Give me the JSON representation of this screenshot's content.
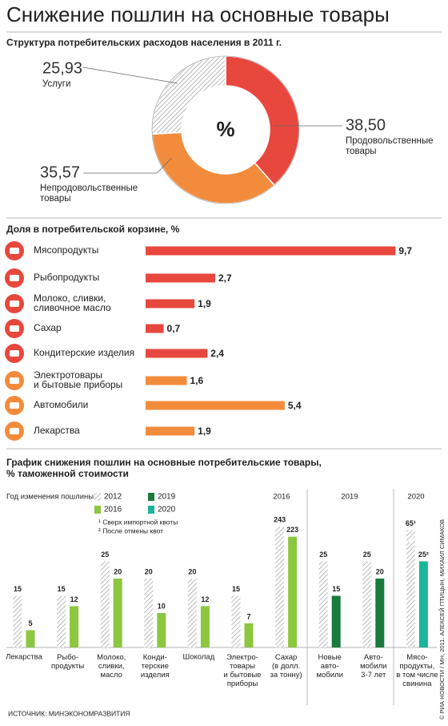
{
  "title": "Снижение пошлин на основные товары",
  "chart_data": [
    {
      "type": "pie",
      "title": "Структура потребительских расходов населения в 2011 г.",
      "center_label": "%",
      "categories": [
        "Продовольственные\nтовары",
        "Непродовольственные\nтовары",
        "Услуги"
      ],
      "values": [
        38.5,
        35.57,
        25.93
      ],
      "value_labels": [
        "38,50",
        "35,57",
        "25,93"
      ],
      "colors": [
        "#e8473e",
        "#f28c3c",
        "#8c8c8c"
      ],
      "hatched": [
        false,
        false,
        true
      ]
    },
    {
      "type": "hbar",
      "title": "Доля в потребительской корзине, %",
      "categories": [
        "Мясопродукты",
        "Рыбопродукты",
        "Молоко, сливки,\nсливочное масло",
        "Сахар",
        "Кондитерские изделия",
        "Электротовары\nи бытовые приборы",
        "Автомобили",
        "Лекарства"
      ],
      "values": [
        9.7,
        2.7,
        1.9,
        0.7,
        2.4,
        1.6,
        5.4,
        1.9
      ],
      "value_labels": [
        "9,7",
        "2,7",
        "1,9",
        "0,7",
        "2,4",
        "1,6",
        "5,4",
        "1,9"
      ],
      "colors": [
        "#e8473e",
        "#e8473e",
        "#e8473e",
        "#e8473e",
        "#e8473e",
        "#f28c3c",
        "#f28c3c",
        "#f28c3c"
      ]
    },
    {
      "type": "grouped_bar",
      "title": "График снижения пошлин на основные потребительские товары,\n% таможенной стоимости",
      "legend_title": "Год изменения пошлины",
      "notes": [
        "¹ Сверх импортной квоты",
        "² После отмены квот"
      ],
      "section_labels": [
        "2016",
        "2019",
        "2020"
      ],
      "categories": [
        "Лекарства",
        "Рыбо-\nпродукты",
        "Молоко,\nсливки,\nмасло",
        "Конди-\nтерские\nизделия",
        "Шоколад",
        "Электро-\nтовары\nи бытовые\nприборы",
        "Сахар\n(в долл.\nза тонну)",
        "Новые\nавто-\nмобили",
        "Авто-\nмобили\n3-7 лет",
        "Мясо-\nпродукты,\nв том числе\nсвинина"
      ],
      "series": [
        {
          "name": "2012",
          "color": "#8c8c8c",
          "hatched": true,
          "values": [
            15,
            15,
            25,
            20,
            20,
            15,
            243,
            25,
            25,
            65
          ],
          "value_labels": [
            "15",
            "15",
            "25",
            "20",
            "20",
            "15",
            "243",
            "25",
            "25",
            "65¹"
          ]
        },
        {
          "name": "2016",
          "color": "#8dc63f",
          "values": [
            5,
            12,
            20,
            10,
            12,
            7,
            223,
            null,
            null,
            null
          ]
        },
        {
          "name": "2019",
          "color": "#1b7a3e",
          "values": [
            null,
            null,
            null,
            null,
            null,
            null,
            null,
            15,
            20,
            null
          ]
        },
        {
          "name": "2020",
          "color": "#1ab59a",
          "values": [
            null,
            null,
            null,
            null,
            null,
            null,
            null,
            null,
            null,
            25
          ],
          "value_labels": [
            null,
            null,
            null,
            null,
            null,
            null,
            null,
            null,
            null,
            "25²"
          ]
        }
      ]
    }
  ],
  "source": "ИСТОЧНИК: МИНЭКОНОМРАЗВИТИЯ",
  "credit": "© РИА НОВОСТИ / МН, 2011. АЛЕКСЕЙ ПТИЦЫН, МИХАИЛ СИМАКОВ"
}
